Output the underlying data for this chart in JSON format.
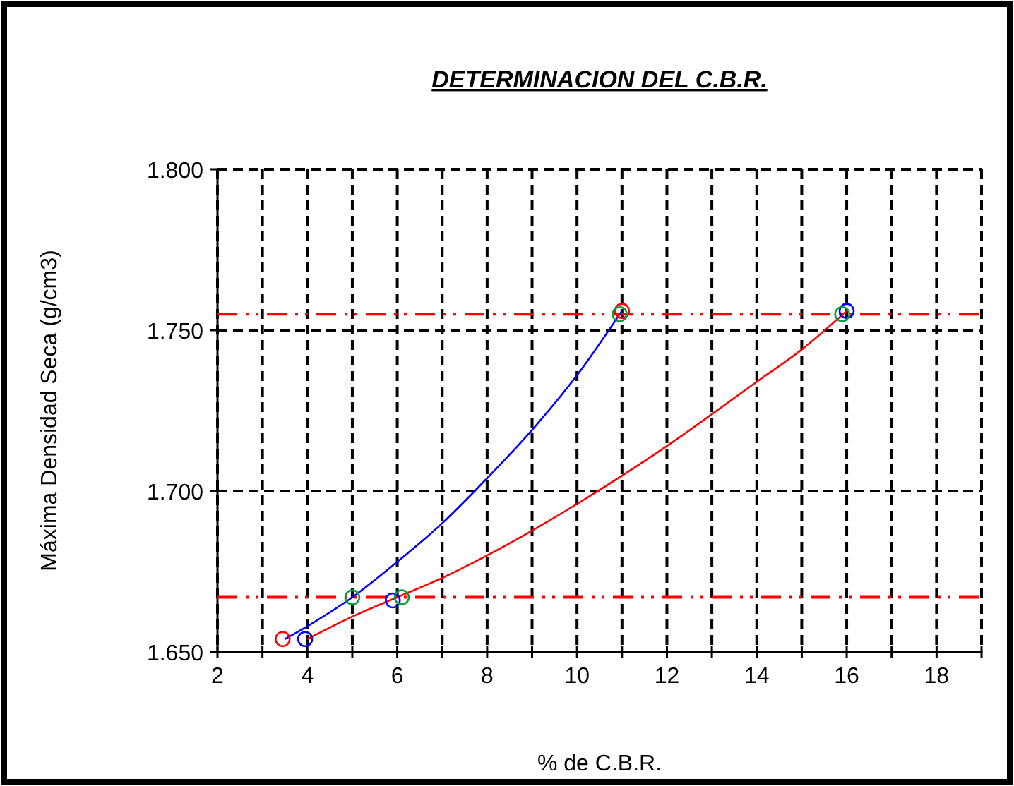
{
  "chart_data": {
    "type": "line",
    "title": "DETERMINACION DEL C.B.R.",
    "xlabel": "% de C.B.R.",
    "ylabel": "Máxima Densidad Seca (g/cm3)",
    "xlim": [
      2,
      19
    ],
    "ylim": [
      1.65,
      1.8
    ],
    "xticks": [
      2,
      {
        "value": 3,
        "label": null
      },
      4,
      {
        "value": 5,
        "label": null
      },
      6,
      {
        "value": 7,
        "label": null
      },
      8,
      {
        "value": 9,
        "label": null
      },
      10,
      {
        "value": 11,
        "label": null
      },
      12,
      {
        "value": 13,
        "label": null
      },
      14,
      {
        "value": 15,
        "label": null
      },
      16,
      {
        "value": 17,
        "label": null
      },
      18,
      {
        "value": 19,
        "label": null
      }
    ],
    "yticks": [
      {
        "value": 1.65,
        "label": "1.650"
      },
      {
        "value": 1.7,
        "label": "1.700"
      },
      {
        "value": 1.75,
        "label": "1.750"
      },
      {
        "value": 1.8,
        "label": "1.800"
      }
    ],
    "grid": true,
    "marker": "circle",
    "series": [
      {
        "color": "#0000ff",
        "marker": "none",
        "x": [
          3.5,
          4,
          5,
          6,
          7,
          8,
          9,
          10,
          11
        ],
        "values": [
          1.654,
          1.658,
          1.667,
          1.678,
          1.69,
          1.704,
          1.719,
          1.736,
          1.756
        ]
      },
      {
        "color": "#ff0000",
        "marker": "none",
        "x": [
          4,
          5,
          6,
          7,
          8,
          10,
          12,
          14,
          15,
          16
        ],
        "values": [
          1.654,
          1.661,
          1.667,
          1.673,
          1.68,
          1.696,
          1.714,
          1.734,
          1.744,
          1.756
        ]
      },
      {
        "type": "scatter",
        "color": "#ff0000",
        "x": [
          3.45,
          11
        ],
        "values": [
          1.654,
          1.756
        ]
      },
      {
        "type": "scatter",
        "color": "#0000ff",
        "x": [
          3.95,
          5.9,
          16
        ],
        "values": [
          1.654,
          1.666,
          1.756
        ]
      },
      {
        "type": "scatter",
        "color": "#00a040",
        "x": [
          5,
          6.1,
          10.95,
          15.9
        ],
        "values": [
          1.667,
          1.667,
          1.755,
          1.755
        ]
      }
    ],
    "ref_lines": [
      {
        "axis": "y",
        "value": 1.755,
        "color": "#ff0000",
        "line_style": "dashed"
      },
      {
        "axis": "y",
        "value": 1.667,
        "color": "#ff0000",
        "line_style": "dashed"
      }
    ]
  }
}
